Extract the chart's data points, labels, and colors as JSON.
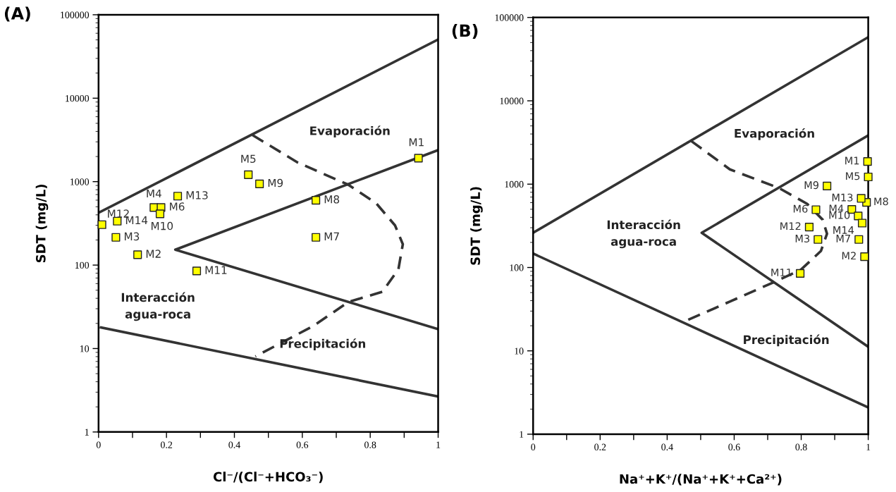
{
  "chart_data": [
    {
      "type": "scatter",
      "title": "(A)",
      "xlabel": "Cl⁻/(Cl⁻+HCO₃⁻)",
      "ylabel": "SDT (mg/L)",
      "log": "y",
      "grid": false,
      "legend": false,
      "xlim": [
        0,
        1
      ],
      "ylim": [
        1,
        100000
      ],
      "xticks": [
        0,
        {
          "value": 0.1,
          "label": null
        },
        0.2,
        {
          "value": 0.3,
          "label": null
        },
        0.4,
        {
          "value": 0.5,
          "label": null
        },
        0.6,
        {
          "value": 0.7,
          "label": null
        },
        0.8,
        {
          "value": 0.9,
          "label": null
        },
        1
      ],
      "yticks": [
        1,
        10,
        100,
        1000,
        10000,
        100000
      ],
      "annotations": [
        "Evaporación",
        "Interacción\nagua-roca",
        "Precipitación"
      ],
      "series": [
        {
          "type": "line",
          "color": "#333333",
          "line_style": "solid",
          "x": [
            0,
            1
          ],
          "values": [
            423,
            50500
          ]
        },
        {
          "type": "line",
          "color": "#333333",
          "line_style": "solid",
          "x": [
            1,
            0.226,
            1
          ],
          "values": [
            2390,
            153,
            17.1
          ]
        },
        {
          "type": "line",
          "color": "#333333",
          "line_style": "solid",
          "x": [
            0.007,
            1
          ],
          "values": [
            17.9,
            2.66
          ]
        },
        {
          "type": "line",
          "color": "#333333",
          "line_style": "dashed",
          "x": [
            0.453,
            0.587,
            0.735,
            0.818,
            0.873,
            0.896,
            0.883,
            0.836,
            0.735,
            0.633,
            0.462
          ],
          "values": [
            3620,
            1690,
            920,
            548,
            299,
            178,
            89,
            48,
            36,
            18.7,
            8.05
          ]
        },
        {
          "name": "M1",
          "color": "#ffff00",
          "x": [
            0.942
          ],
          "values": [
            1910
          ]
        },
        {
          "name": "M2",
          "color": "#ffff00",
          "x": [
            0.115
          ],
          "values": [
            133
          ]
        },
        {
          "name": "M3",
          "color": "#ffff00",
          "x": [
            0.051
          ],
          "values": [
            215
          ]
        },
        {
          "name": "M4",
          "color": "#ffff00",
          "x": [
            0.163
          ],
          "values": [
            490
          ]
        },
        {
          "name": "M5",
          "color": "#ffff00",
          "x": [
            0.441
          ],
          "values": [
            1210
          ]
        },
        {
          "name": "M6",
          "color": "#ffff00",
          "x": [
            0.184
          ],
          "values": [
            490
          ]
        },
        {
          "name": "M7",
          "color": "#ffff00",
          "x": [
            0.64
          ],
          "values": [
            215
          ]
        },
        {
          "name": "M8",
          "color": "#ffff00",
          "x": [
            0.64
          ],
          "values": [
            598
          ]
        },
        {
          "name": "M9",
          "color": "#ffff00",
          "x": [
            0.474
          ],
          "values": [
            940
          ]
        },
        {
          "name": "M10",
          "color": "#ffff00",
          "x": [
            0.181
          ],
          "values": [
            411
          ]
        },
        {
          "name": "M11",
          "color": "#ffff00",
          "x": [
            0.289
          ],
          "values": [
            85
          ]
        },
        {
          "name": "M12",
          "color": "#ffff00",
          "x": [
            0.01
          ],
          "values": [
            305
          ]
        },
        {
          "name": "M13",
          "color": "#ffff00",
          "x": [
            0.233
          ],
          "values": [
            670
          ]
        },
        {
          "name": "M14",
          "color": "#ffff00",
          "x": [
            0.055
          ],
          "values": [
            336
          ]
        }
      ]
    },
    {
      "type": "scatter",
      "title": "(B)",
      "xlabel": "Na⁺+K⁺/(Na⁺+K⁺+Ca²⁺)",
      "ylabel": "SDT (mg/L)",
      "log": "y",
      "grid": false,
      "legend": false,
      "xlim": [
        0,
        1
      ],
      "ylim": [
        1,
        100000
      ],
      "xticks": [
        0,
        {
          "value": 0.1,
          "label": null
        },
        0.2,
        {
          "value": 0.3,
          "label": null
        },
        0.4,
        {
          "value": 0.5,
          "label": null
        },
        0.6,
        {
          "value": 0.7,
          "label": null
        },
        0.8,
        {
          "value": 0.9,
          "label": null
        },
        1
      ],
      "yticks": [
        1,
        10,
        100,
        1000,
        10000,
        100000
      ],
      "annotations": [
        "Evaporación",
        "Interacción\nagua-roca",
        "Precipitación"
      ],
      "series": [
        {
          "type": "line",
          "color": "#333333",
          "line_style": "solid",
          "x": [
            0,
            1
          ],
          "values": [
            261,
            58000
          ]
        },
        {
          "type": "line",
          "color": "#333333",
          "line_style": "solid",
          "x": [
            1,
            0.503,
            1
          ],
          "values": [
            3850,
            261,
            11.2
          ]
        },
        {
          "type": "line",
          "color": "#333333",
          "line_style": "solid",
          "x": [
            0,
            1
          ],
          "values": [
            147,
            2.09
          ]
        },
        {
          "type": "line",
          "color": "#333333",
          "line_style": "dashed",
          "x": [
            0.472,
            0.587,
            0.735,
            0.818,
            0.864,
            0.877,
            0.859,
            0.799,
            0.716,
            0.587,
            0.449
          ],
          "values": [
            3290,
            1506,
            893,
            580,
            375,
            254,
            158,
            94,
            66,
            39,
            22.3
          ]
        },
        {
          "name": "M1",
          "color": "#ffff00",
          "x": [
            0.998
          ],
          "values": [
            1870
          ]
        },
        {
          "name": "M2",
          "color": "#ffff00",
          "x": [
            0.989
          ],
          "values": [
            135
          ]
        },
        {
          "name": "M3",
          "color": "#ffff00",
          "x": [
            0.85
          ],
          "values": [
            217
          ]
        },
        {
          "name": "M4",
          "color": "#ffff00",
          "x": [
            0.951
          ],
          "values": [
            498
          ]
        },
        {
          "name": "M5",
          "color": "#ffff00",
          "x": [
            1.0
          ],
          "values": [
            1220
          ]
        },
        {
          "name": "M6",
          "color": "#ffff00",
          "x": [
            0.844
          ],
          "values": [
            494
          ]
        },
        {
          "name": "M7",
          "color": "#ffff00",
          "x": [
            0.972
          ],
          "values": [
            217
          ]
        },
        {
          "name": "M8",
          "color": "#ffff00",
          "x": [
            0.995
          ],
          "values": [
            605
          ]
        },
        {
          "name": "M9",
          "color": "#ffff00",
          "x": [
            0.877
          ],
          "values": [
            950
          ]
        },
        {
          "name": "M10",
          "color": "#ffff00",
          "x": [
            0.97
          ],
          "values": [
            415
          ]
        },
        {
          "name": "M11",
          "color": "#ffff00",
          "x": [
            0.797
          ],
          "values": [
            85
          ]
        },
        {
          "name": "M12",
          "color": "#ffff00",
          "x": [
            0.824
          ],
          "values": [
            306
          ]
        },
        {
          "name": "M13",
          "color": "#ffff00",
          "x": [
            0.979
          ],
          "values": [
            675
          ]
        },
        {
          "name": "M14",
          "color": "#ffff00",
          "x": [
            0.982
          ],
          "values": [
            341
          ]
        }
      ]
    }
  ]
}
